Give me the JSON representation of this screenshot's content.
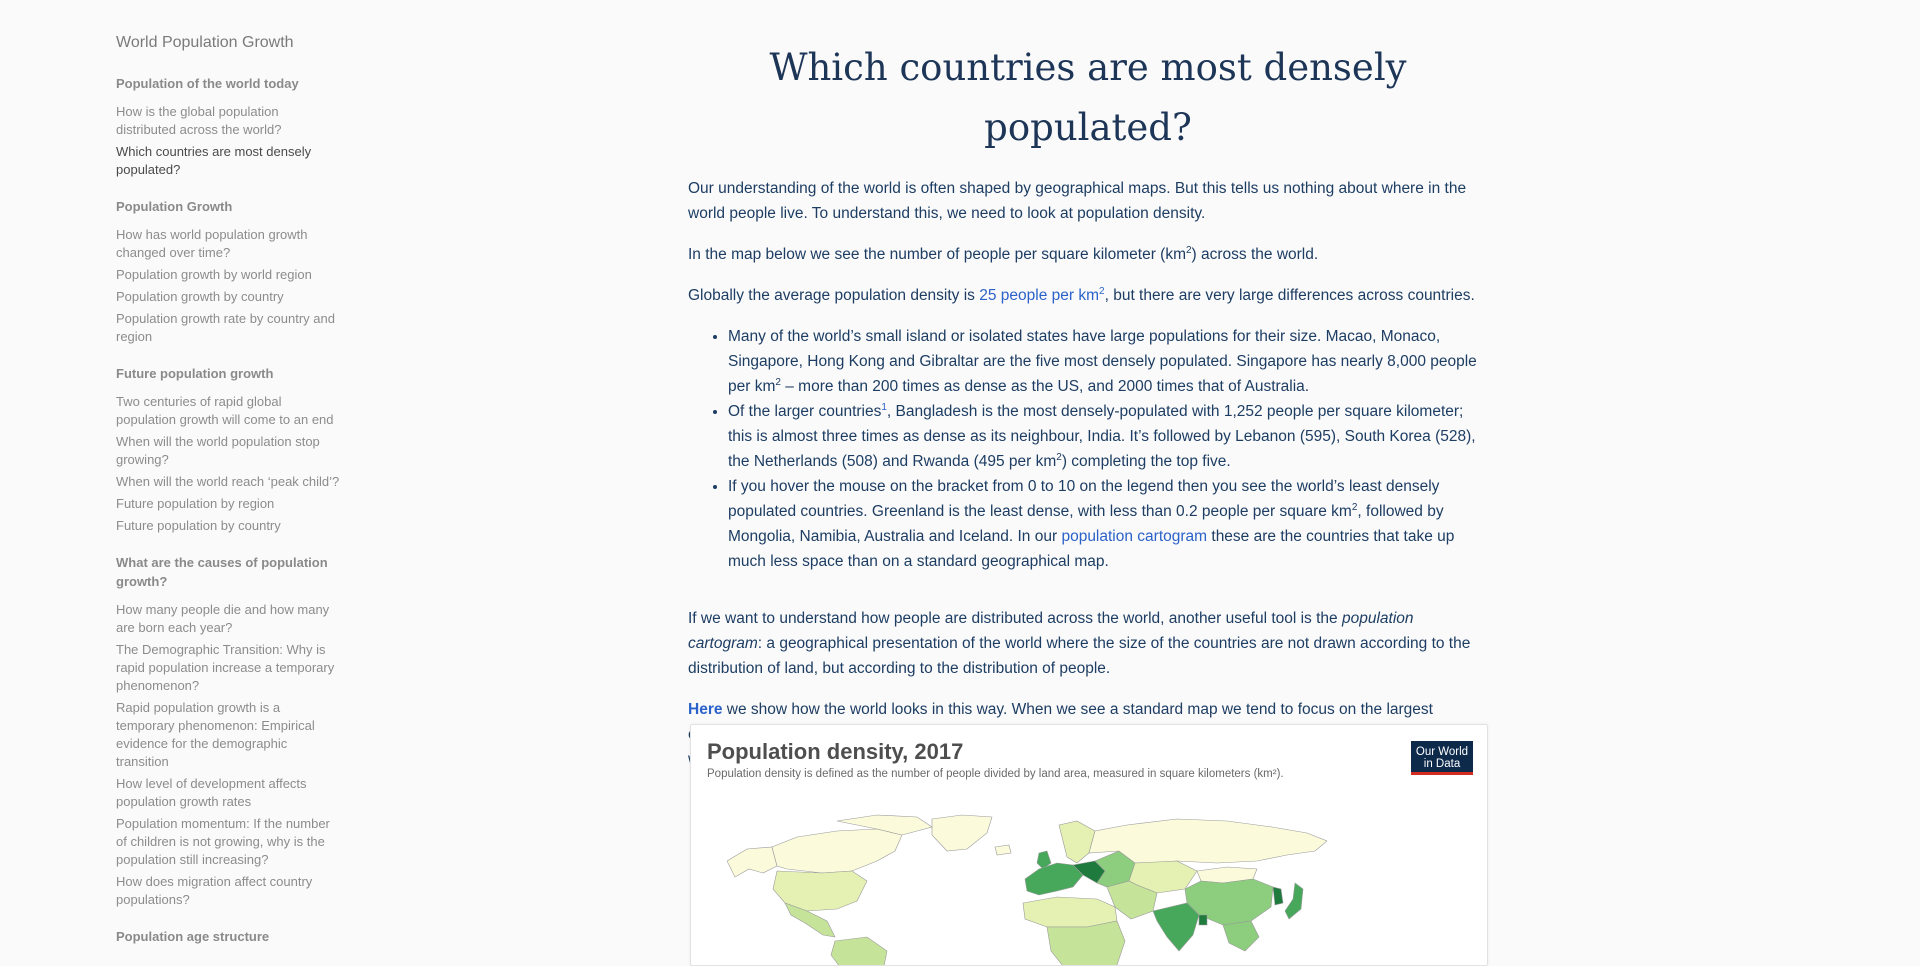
{
  "sidebar": {
    "title": "World Population Growth",
    "sections": [
      {
        "heading": "Population of the world today",
        "items": [
          {
            "label": "How is the global population distributed across the world?",
            "active": false
          },
          {
            "label": "Which countries are most densely populated?",
            "active": true
          }
        ]
      },
      {
        "heading": "Population Growth",
        "items": [
          {
            "label": "How has world population growth changed over time?",
            "active": false
          },
          {
            "label": "Population growth by world region",
            "active": false
          },
          {
            "label": "Population growth by country",
            "active": false
          },
          {
            "label": "Population growth rate by country and region",
            "active": false
          }
        ]
      },
      {
        "heading": "Future population growth",
        "items": [
          {
            "label": "Two centuries of rapid global population growth will come to an end",
            "active": false
          },
          {
            "label": "When will the world population stop growing?",
            "active": false
          },
          {
            "label": "When will the world reach ‘peak child’?",
            "active": false
          },
          {
            "label": "Future population by region",
            "active": false
          },
          {
            "label": "Future population by country",
            "active": false
          }
        ]
      },
      {
        "heading": "What are the causes of population growth?",
        "items": [
          {
            "label": "How many people die and how many are born each year?",
            "active": false
          },
          {
            "label": "The Demographic Transition: Why is rapid population increase a temporary phenomenon?",
            "active": false
          },
          {
            "label": "Rapid population growth is a temporary phenomenon: Empirical evidence for the demographic transition",
            "active": false
          },
          {
            "label": "How level of development affects population growth rates",
            "active": false
          },
          {
            "label": "Population momentum: If the number of children is not growing, why is the population still increasing?",
            "active": false
          },
          {
            "label": "How does migration affect country populations?",
            "active": false
          }
        ]
      },
      {
        "heading": "Population age structure",
        "items": []
      }
    ]
  },
  "article": {
    "title": "Which countries are most densely populated?",
    "p1": "Our understanding of the world is often shaped by geographical maps. But this tells us nothing about where in the world people live. To understand this, we need to look at population density.",
    "p2_a": "In the map below we see the number of people per square kilometer (km",
    "p2_sup": "2",
    "p2_b": ") across the world.",
    "p3_a": "Globally the average population density is ",
    "p3_link": "25 people per km",
    "p3_link_sup": "2",
    "p3_b": ", but there are very large differences across countries.",
    "b1_a": "Many of the world’s small island or isolated states have large populations for their size. Macao, Monaco, Singapore, Hong Kong and Gibraltar are the five most densely populated. Singapore has nearly 8,000 people per km",
    "b1_sup": "2",
    "b1_b": " – more than 200 times as dense as the US, and 2000 times that of Australia.",
    "b2_a": "Of the larger countries",
    "b2_fn": "1",
    "b2_b": ", Bangladesh is the most densely-populated with 1,252 people per square kilometer; this is almost three times as dense as its neighbour, India. It’s followed by Lebanon (595), South Korea (528), the Netherlands (508) and Rwanda (495 per km",
    "b2_sup": "2",
    "b2_c": ") completing the top five.",
    "b3_a": "If you hover the mouse on the bracket from 0 to 10 on the legend then you see the world’s least densely populated countries. Greenland is the least dense, with less than 0.2 people per square km",
    "b3_sup": "2",
    "b3_b": ", followed by Mongolia, Namibia, Australia and Iceland. In our ",
    "b3_link": "population cartogram",
    "b3_c": " these are the countries that take up much less space than on a standard geographical map.",
    "p4_a": "If we want to understand how people are distributed across the world, another useful tool is the ",
    "p4_em": "population cartogram",
    "p4_b": ": a geographical presentation of the world where the size of the countries are not drawn according to the distribution of land, but according to the distribution of people.",
    "p5_link": "Here",
    "p5_b": " we show how the world looks in this way. When we see a standard map we tend to focus on the largest countries by area. But these are not always where the greatest number of people live. It’s this context we need if we want to understand how the lives of people around the world are changing."
  },
  "chart": {
    "title": "Population density, 2017",
    "subtitle": "Population density is defined as the number of people divided by land area, measured in square kilometers (km²).",
    "logo_line1": "Our World",
    "logo_line2": "in Data",
    "colors": {
      "very_low": "#fbfbdc",
      "low": "#e4f1b3",
      "medium_low": "#c5e49a",
      "medium": "#8ccd7e",
      "high": "#47a85b",
      "very_high": "#1f7a3d",
      "border": "#9a9a9a"
    }
  }
}
